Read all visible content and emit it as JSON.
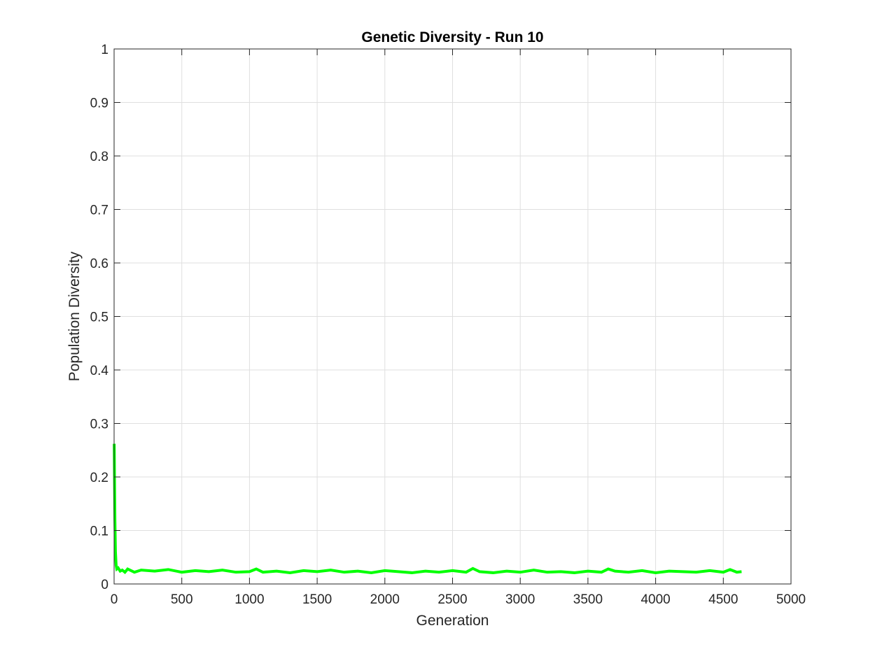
{
  "chart_data": {
    "type": "line",
    "title": "Genetic Diversity - Run 10",
    "xlabel": "Generation",
    "ylabel": "Population Diversity",
    "xlim": [
      0,
      5000
    ],
    "ylim": [
      0,
      1
    ],
    "xticks": [
      "0",
      "500",
      "1000",
      "1500",
      "2000",
      "2500",
      "3000",
      "3500",
      "4000",
      "4500",
      "5000"
    ],
    "yticks": [
      "0",
      "0.1",
      "0.2",
      "0.3",
      "0.4",
      "0.5",
      "0.6",
      "0.7",
      "0.8",
      "0.9",
      "1"
    ],
    "grid": true,
    "legend": "none",
    "series": [
      {
        "color": "#00ff00",
        "x": [
          1,
          3,
          6,
          10,
          15,
          20,
          30,
          45,
          60,
          80,
          100,
          150,
          200,
          300,
          400,
          500,
          600,
          700,
          800,
          900,
          1000,
          1050,
          1100,
          1200,
          1300,
          1400,
          1500,
          1600,
          1700,
          1800,
          1900,
          2000,
          2100,
          2200,
          2300,
          2400,
          2500,
          2600,
          2650,
          2700,
          2800,
          2900,
          3000,
          3100,
          3200,
          3300,
          3400,
          3500,
          3600,
          3650,
          3700,
          3800,
          3900,
          4000,
          4100,
          4200,
          4300,
          4400,
          4500,
          4550,
          4600,
          4635
        ],
        "y": [
          0.262,
          0.2,
          0.12,
          0.06,
          0.035,
          0.028,
          0.03,
          0.024,
          0.026,
          0.022,
          0.028,
          0.022,
          0.026,
          0.024,
          0.027,
          0.022,
          0.025,
          0.023,
          0.026,
          0.022,
          0.023,
          0.028,
          0.022,
          0.024,
          0.021,
          0.025,
          0.023,
          0.026,
          0.022,
          0.024,
          0.021,
          0.025,
          0.023,
          0.021,
          0.024,
          0.022,
          0.025,
          0.022,
          0.029,
          0.023,
          0.021,
          0.024,
          0.022,
          0.026,
          0.022,
          0.023,
          0.021,
          0.024,
          0.022,
          0.028,
          0.024,
          0.022,
          0.025,
          0.021,
          0.024,
          0.023,
          0.022,
          0.025,
          0.022,
          0.027,
          0.022,
          0.023
        ]
      }
    ]
  }
}
